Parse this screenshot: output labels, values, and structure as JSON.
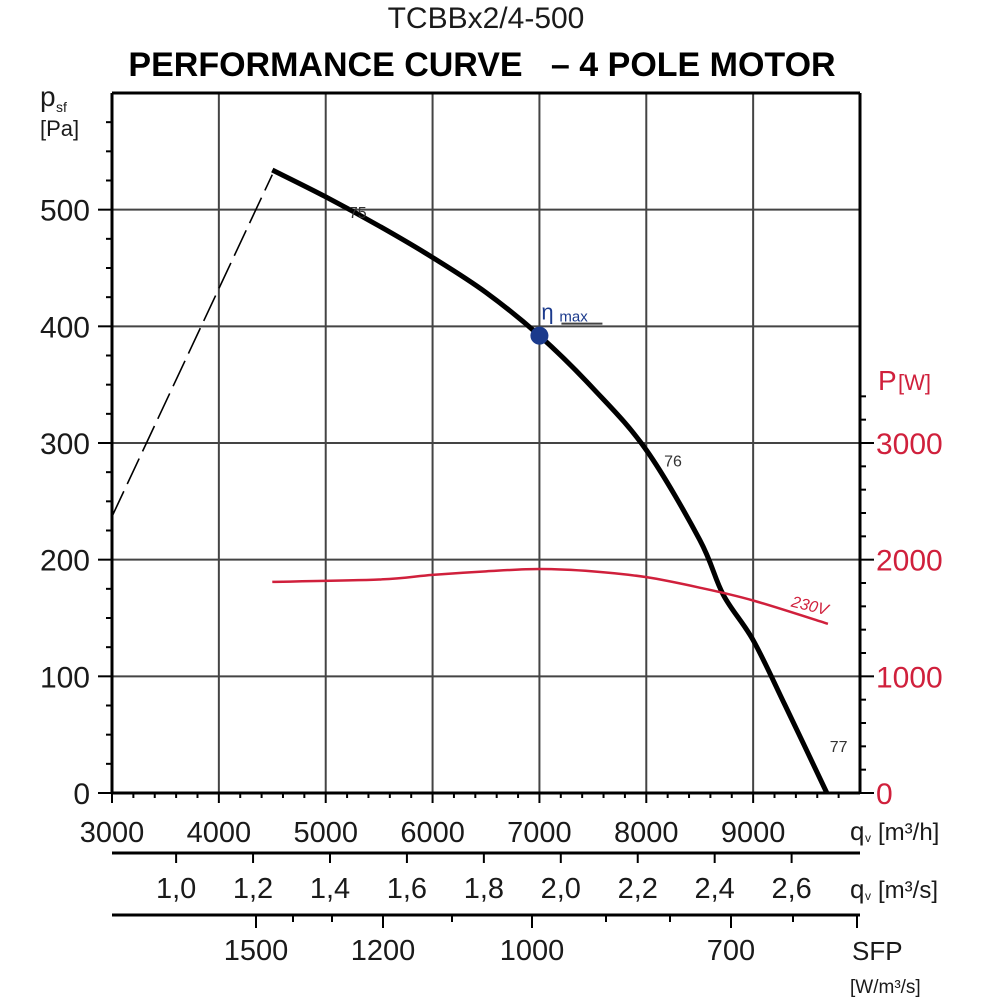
{
  "chart_data": {
    "type": "line",
    "model": "TCBBx2/4-500",
    "title": "PERFORMANCE CURVE   – 4 POLE MOTOR",
    "ylabel": {
      "symbol": "p",
      "sub": "sf",
      "unit": "[Pa]"
    },
    "y2label": {
      "symbol": "P",
      "unit": "[W]"
    },
    "xlabel": {
      "symbol": "q",
      "sub": "v",
      "unit": "[m3/h]",
      "unit_display": "[m³/h]"
    },
    "x2label": {
      "symbol": "q",
      "sub": "v",
      "unit_display": "[m³/s]"
    },
    "sfp_label": {
      "symbol": "SFP",
      "unit_display": "[W/m³/s]"
    },
    "xlim": [
      3000,
      10000
    ],
    "ylim": [
      0,
      600
    ],
    "y2lim": [
      0,
      6000
    ],
    "grid": true,
    "x_ticks": [
      3000,
      4000,
      5000,
      6000,
      7000,
      8000,
      9000
    ],
    "y_ticks": [
      0,
      100,
      200,
      300,
      400,
      500
    ],
    "y2_ticks": [
      0,
      1000,
      2000,
      3000
    ],
    "x2_ticks": [
      {
        "value": 1.0,
        "label": "1,0"
      },
      {
        "value": 1.2,
        "label": "1,2"
      },
      {
        "value": 1.4,
        "label": "1,4"
      },
      {
        "value": 1.6,
        "label": "1,6"
      },
      {
        "value": 1.8,
        "label": "1,8"
      },
      {
        "value": 2.0,
        "label": "2,0"
      },
      {
        "value": 2.2,
        "label": "2,2"
      },
      {
        "value": 2.4,
        "label": "2,4"
      },
      {
        "value": 2.6,
        "label": "2,6"
      }
    ],
    "sfp_ticks": [
      "1500",
      "1200",
      "1000",
      "700"
    ],
    "series": [
      {
        "role": "pressure",
        "color": "#000000",
        "x": [
          4500,
          5000,
          5500,
          6000,
          6500,
          7000,
          7500,
          8000,
          8500,
          8720,
          9000,
          9300,
          9690
        ],
        "y": [
          534,
          511,
          486,
          459,
          429,
          392,
          347,
          294,
          217,
          170,
          131,
          75,
          0
        ]
      },
      {
        "role": "stall-region",
        "style": "dashed",
        "color": "#000000",
        "x": [
          3000,
          4500
        ],
        "y": [
          237,
          530
        ]
      },
      {
        "name": "230V",
        "role": "power",
        "axis": "right",
        "color": "#d0203c",
        "x": [
          4500,
          5500,
          6000,
          6500,
          7000,
          7500,
          8000,
          8500,
          9000,
          9700
        ],
        "y": [
          1810,
          1830,
          1870,
          1900,
          1920,
          1900,
          1850,
          1760,
          1650,
          1450
        ]
      }
    ],
    "annotations": [
      {
        "text": "75",
        "x": 5300,
        "y": 493
      },
      {
        "text": "76",
        "x": 8250,
        "y": 280
      },
      {
        "text": "77",
        "x": 9800,
        "y": 35
      },
      {
        "text": "230V",
        "x": 9350,
        "y": 160
      },
      {
        "text": "η",
        "sub": "max",
        "x": 7000,
        "y": 392,
        "color": "#1b3a8c"
      }
    ]
  }
}
